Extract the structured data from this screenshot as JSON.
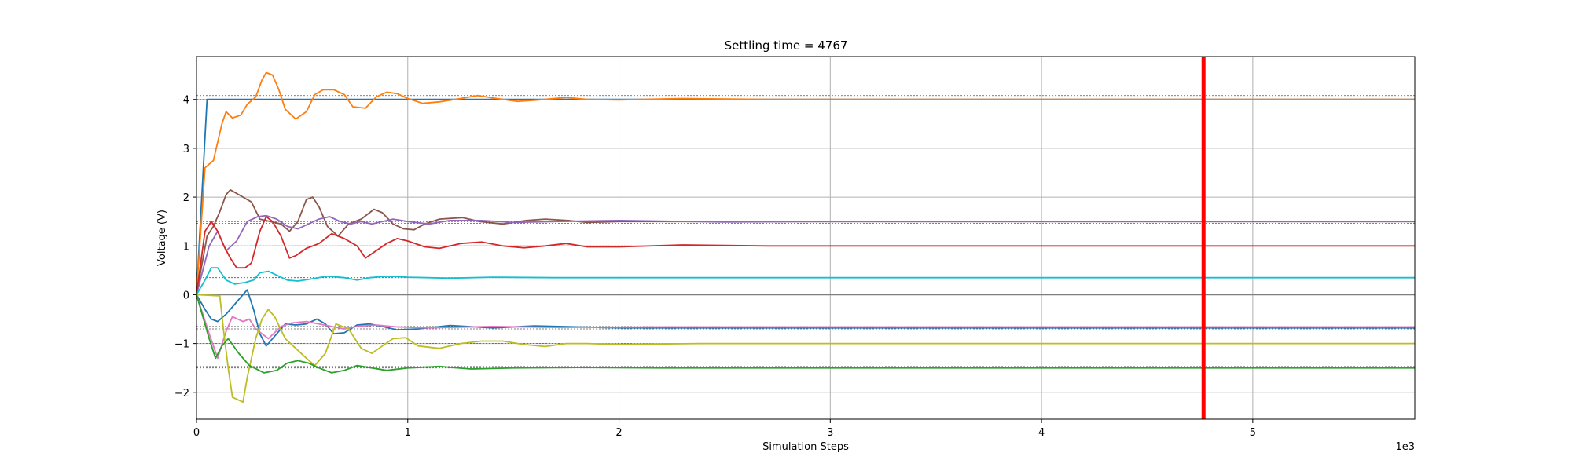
{
  "chart_data": {
    "type": "line",
    "title": "Settling time = 4767",
    "xlabel": "Simulation Steps",
    "ylabel": "Voltage (V)",
    "x_multiplier_label": "1e3",
    "xlim": [
      0,
      5767
    ],
    "ylim": [
      -2.55,
      4.88
    ],
    "xticks": [
      0,
      1000,
      2000,
      3000,
      4000,
      5000
    ],
    "xtick_labels": [
      "0",
      "1",
      "2",
      "3",
      "4",
      "5"
    ],
    "yticks": [
      -2,
      -1,
      0,
      1,
      2,
      3,
      4
    ],
    "ytick_labels": [
      "−2",
      "−1",
      "0",
      "1",
      "2",
      "3",
      "4"
    ],
    "grid": true,
    "settling_line": {
      "x": 4767,
      "color": "#ff0000"
    },
    "reference_levels": [
      4.08,
      4.0,
      1.5,
      1.46,
      1.0,
      0.35,
      0.0,
      -0.65,
      -0.7,
      -1.0,
      -1.47,
      -1.5
    ],
    "zero_line_color": "#808080",
    "series": [
      {
        "color": "#1f77b4",
        "points": [
          [
            0,
            0
          ],
          [
            50,
            4.0
          ],
          [
            5767,
            4.0
          ]
        ]
      },
      {
        "color": "#ff7f0e",
        "points": [
          [
            0,
            0
          ],
          [
            40,
            2.6
          ],
          [
            80,
            2.75
          ],
          [
            120,
            3.5
          ],
          [
            140,
            3.75
          ],
          [
            170,
            3.62
          ],
          [
            210,
            3.68
          ],
          [
            240,
            3.9
          ],
          [
            280,
            4.05
          ],
          [
            310,
            4.4
          ],
          [
            330,
            4.55
          ],
          [
            360,
            4.5
          ],
          [
            390,
            4.2
          ],
          [
            420,
            3.8
          ],
          [
            470,
            3.6
          ],
          [
            520,
            3.75
          ],
          [
            560,
            4.1
          ],
          [
            600,
            4.2
          ],
          [
            650,
            4.2
          ],
          [
            700,
            4.1
          ],
          [
            740,
            3.85
          ],
          [
            800,
            3.82
          ],
          [
            850,
            4.05
          ],
          [
            900,
            4.15
          ],
          [
            950,
            4.12
          ],
          [
            1000,
            4.02
          ],
          [
            1070,
            3.92
          ],
          [
            1150,
            3.95
          ],
          [
            1250,
            4.02
          ],
          [
            1330,
            4.08
          ],
          [
            1420,
            4.02
          ],
          [
            1520,
            3.96
          ],
          [
            1620,
            3.99
          ],
          [
            1750,
            4.04
          ],
          [
            1850,
            4.0
          ],
          [
            2000,
            3.99
          ],
          [
            2300,
            4.02
          ],
          [
            2700,
            4.0
          ],
          [
            5767,
            4.0
          ]
        ]
      },
      {
        "color": "#8c564b",
        "points": [
          [
            0,
            0
          ],
          [
            50,
            1.2
          ],
          [
            80,
            1.4
          ],
          [
            110,
            1.7
          ],
          [
            140,
            2.05
          ],
          [
            160,
            2.15
          ],
          [
            200,
            2.05
          ],
          [
            260,
            1.9
          ],
          [
            300,
            1.55
          ],
          [
            350,
            1.5
          ],
          [
            400,
            1.45
          ],
          [
            440,
            1.3
          ],
          [
            480,
            1.5
          ],
          [
            520,
            1.95
          ],
          [
            550,
            2.0
          ],
          [
            580,
            1.8
          ],
          [
            620,
            1.4
          ],
          [
            670,
            1.2
          ],
          [
            720,
            1.45
          ],
          [
            780,
            1.55
          ],
          [
            840,
            1.75
          ],
          [
            880,
            1.68
          ],
          [
            930,
            1.45
          ],
          [
            980,
            1.35
          ],
          [
            1030,
            1.33
          ],
          [
            1080,
            1.45
          ],
          [
            1150,
            1.55
          ],
          [
            1260,
            1.58
          ],
          [
            1340,
            1.5
          ],
          [
            1450,
            1.45
          ],
          [
            1560,
            1.52
          ],
          [
            1650,
            1.55
          ],
          [
            1760,
            1.52
          ],
          [
            1850,
            1.48
          ],
          [
            2000,
            1.5
          ],
          [
            2500,
            1.5
          ],
          [
            5767,
            1.5
          ]
        ]
      },
      {
        "color": "#9467bd",
        "points": [
          [
            0,
            0
          ],
          [
            60,
            1.0
          ],
          [
            100,
            1.3
          ],
          [
            140,
            0.9
          ],
          [
            190,
            1.1
          ],
          [
            240,
            1.5
          ],
          [
            290,
            1.6
          ],
          [
            330,
            1.62
          ],
          [
            380,
            1.55
          ],
          [
            430,
            1.4
          ],
          [
            480,
            1.35
          ],
          [
            530,
            1.45
          ],
          [
            580,
            1.55
          ],
          [
            630,
            1.6
          ],
          [
            680,
            1.5
          ],
          [
            730,
            1.45
          ],
          [
            780,
            1.5
          ],
          [
            830,
            1.45
          ],
          [
            880,
            1.5
          ],
          [
            930,
            1.55
          ],
          [
            1000,
            1.5
          ],
          [
            1100,
            1.45
          ],
          [
            1200,
            1.52
          ],
          [
            1350,
            1.52
          ],
          [
            1500,
            1.48
          ],
          [
            1700,
            1.5
          ],
          [
            2000,
            1.52
          ],
          [
            2500,
            1.49
          ],
          [
            3000,
            1.5
          ],
          [
            5767,
            1.5
          ]
        ]
      },
      {
        "color": "#d62728",
        "points": [
          [
            0,
            0
          ],
          [
            40,
            1.3
          ],
          [
            70,
            1.5
          ],
          [
            100,
            1.3
          ],
          [
            130,
            1.0
          ],
          [
            160,
            0.75
          ],
          [
            190,
            0.55
          ],
          [
            230,
            0.55
          ],
          [
            260,
            0.65
          ],
          [
            300,
            1.3
          ],
          [
            330,
            1.6
          ],
          [
            360,
            1.5
          ],
          [
            400,
            1.2
          ],
          [
            440,
            0.75
          ],
          [
            470,
            0.8
          ],
          [
            520,
            0.95
          ],
          [
            580,
            1.05
          ],
          [
            640,
            1.25
          ],
          [
            700,
            1.15
          ],
          [
            760,
            1.0
          ],
          [
            800,
            0.75
          ],
          [
            850,
            0.9
          ],
          [
            900,
            1.05
          ],
          [
            950,
            1.15
          ],
          [
            1000,
            1.1
          ],
          [
            1080,
            0.98
          ],
          [
            1150,
            0.95
          ],
          [
            1250,
            1.05
          ],
          [
            1350,
            1.08
          ],
          [
            1450,
            1.0
          ],
          [
            1550,
            0.96
          ],
          [
            1650,
            1.0
          ],
          [
            1750,
            1.05
          ],
          [
            1850,
            0.98
          ],
          [
            2000,
            0.98
          ],
          [
            2300,
            1.02
          ],
          [
            2700,
            1.0
          ],
          [
            5767,
            1.0
          ]
        ]
      },
      {
        "color": "#17becf",
        "points": [
          [
            0,
            0
          ],
          [
            40,
            0.3
          ],
          [
            70,
            0.55
          ],
          [
            100,
            0.55
          ],
          [
            140,
            0.3
          ],
          [
            180,
            0.22
          ],
          [
            230,
            0.25
          ],
          [
            270,
            0.3
          ],
          [
            300,
            0.45
          ],
          [
            340,
            0.48
          ],
          [
            380,
            0.4
          ],
          [
            430,
            0.3
          ],
          [
            480,
            0.28
          ],
          [
            540,
            0.32
          ],
          [
            620,
            0.38
          ],
          [
            700,
            0.35
          ],
          [
            760,
            0.3
          ],
          [
            820,
            0.35
          ],
          [
            900,
            0.38
          ],
          [
            1000,
            0.36
          ],
          [
            1200,
            0.34
          ],
          [
            1400,
            0.36
          ],
          [
            1700,
            0.35
          ],
          [
            2500,
            0.35
          ],
          [
            5767,
            0.35
          ]
        ]
      },
      {
        "color": "#7f7f7f",
        "points": [
          [
            0,
            0
          ],
          [
            5767,
            0
          ]
        ]
      },
      {
        "color": "#1f77b4",
        "points": [
          [
            0,
            0
          ],
          [
            40,
            -0.3
          ],
          [
            70,
            -0.5
          ],
          [
            100,
            -0.55
          ],
          [
            140,
            -0.4
          ],
          [
            180,
            -0.2
          ],
          [
            210,
            -0.05
          ],
          [
            240,
            0.1
          ],
          [
            270,
            -0.3
          ],
          [
            300,
            -0.8
          ],
          [
            330,
            -1.05
          ],
          [
            370,
            -0.85
          ],
          [
            420,
            -0.6
          ],
          [
            470,
            -0.62
          ],
          [
            520,
            -0.6
          ],
          [
            570,
            -0.5
          ],
          [
            610,
            -0.6
          ],
          [
            650,
            -0.8
          ],
          [
            700,
            -0.78
          ],
          [
            760,
            -0.62
          ],
          [
            820,
            -0.6
          ],
          [
            880,
            -0.65
          ],
          [
            950,
            -0.72
          ],
          [
            1050,
            -0.7
          ],
          [
            1200,
            -0.63
          ],
          [
            1400,
            -0.68
          ],
          [
            1600,
            -0.64
          ],
          [
            2000,
            -0.68
          ],
          [
            3000,
            -0.68
          ],
          [
            5767,
            -0.68
          ]
        ]
      },
      {
        "color": "#e377c2",
        "points": [
          [
            0,
            0
          ],
          [
            60,
            -0.8
          ],
          [
            100,
            -1.3
          ],
          [
            140,
            -0.75
          ],
          [
            170,
            -0.45
          ],
          [
            220,
            -0.55
          ],
          [
            250,
            -0.5
          ],
          [
            280,
            -0.7
          ],
          [
            310,
            -0.8
          ],
          [
            340,
            -0.9
          ],
          [
            400,
            -0.65
          ],
          [
            450,
            -0.58
          ],
          [
            520,
            -0.55
          ],
          [
            580,
            -0.6
          ],
          [
            640,
            -0.65
          ],
          [
            700,
            -0.7
          ],
          [
            760,
            -0.65
          ],
          [
            850,
            -0.62
          ],
          [
            950,
            -0.66
          ],
          [
            1100,
            -0.68
          ],
          [
            1400,
            -0.65
          ],
          [
            1700,
            -0.67
          ],
          [
            2200,
            -0.66
          ],
          [
            5767,
            -0.66
          ]
        ]
      },
      {
        "color": "#bcbd22",
        "points": [
          [
            0,
            0
          ],
          [
            100,
            -0.02
          ],
          [
            110,
            -0.02
          ],
          [
            130,
            -0.8
          ],
          [
            150,
            -1.5
          ],
          [
            170,
            -2.1
          ],
          [
            220,
            -2.2
          ],
          [
            240,
            -1.7
          ],
          [
            260,
            -1.3
          ],
          [
            280,
            -0.9
          ],
          [
            310,
            -0.5
          ],
          [
            340,
            -0.3
          ],
          [
            370,
            -0.45
          ],
          [
            420,
            -0.9
          ],
          [
            470,
            -1.1
          ],
          [
            520,
            -1.3
          ],
          [
            560,
            -1.45
          ],
          [
            610,
            -1.2
          ],
          [
            660,
            -0.6
          ],
          [
            720,
            -0.7
          ],
          [
            780,
            -1.1
          ],
          [
            830,
            -1.2
          ],
          [
            880,
            -1.05
          ],
          [
            930,
            -0.9
          ],
          [
            990,
            -0.88
          ],
          [
            1050,
            -1.05
          ],
          [
            1150,
            -1.1
          ],
          [
            1250,
            -1.0
          ],
          [
            1350,
            -0.95
          ],
          [
            1450,
            -0.95
          ],
          [
            1550,
            -1.02
          ],
          [
            1650,
            -1.06
          ],
          [
            1750,
            -1.0
          ],
          [
            1850,
            -1.0
          ],
          [
            2000,
            -1.02
          ],
          [
            2400,
            -1.0
          ],
          [
            5767,
            -1.0
          ]
        ]
      },
      {
        "color": "#2ca02c",
        "points": [
          [
            0,
            0
          ],
          [
            60,
            -0.9
          ],
          [
            90,
            -1.3
          ],
          [
            120,
            -1.05
          ],
          [
            150,
            -0.9
          ],
          [
            200,
            -1.2
          ],
          [
            250,
            -1.45
          ],
          [
            320,
            -1.6
          ],
          [
            380,
            -1.55
          ],
          [
            430,
            -1.4
          ],
          [
            480,
            -1.35
          ],
          [
            530,
            -1.4
          ],
          [
            580,
            -1.5
          ],
          [
            640,
            -1.6
          ],
          [
            700,
            -1.55
          ],
          [
            760,
            -1.45
          ],
          [
            830,
            -1.5
          ],
          [
            900,
            -1.55
          ],
          [
            1000,
            -1.5
          ],
          [
            1150,
            -1.47
          ],
          [
            1300,
            -1.52
          ],
          [
            1500,
            -1.5
          ],
          [
            1800,
            -1.49
          ],
          [
            2200,
            -1.5
          ],
          [
            5767,
            -1.5
          ]
        ]
      }
    ]
  }
}
